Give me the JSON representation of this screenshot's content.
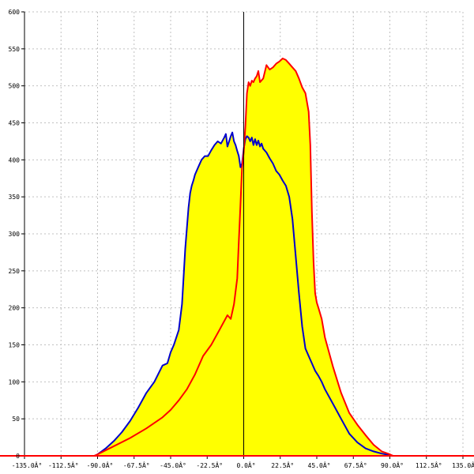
{
  "chart_data": {
    "type": "area",
    "title": "",
    "xlabel": "",
    "ylabel": "",
    "xlim": [
      -135,
      135
    ],
    "ylim": [
      0,
      600
    ],
    "grid": true,
    "x_ticks": [
      -135,
      -112.5,
      -90,
      -67.5,
      -45,
      -22.5,
      0,
      22.5,
      45,
      67.5,
      90,
      112.5,
      135
    ],
    "x_tick_labels": [
      "-135.0Â°",
      "-112.5Â°",
      "-90.0Â°",
      "-67.5Â°",
      "-45.0Â°",
      "-22.5Â°",
      "0.0Â°",
      "22.5Â°",
      "45.0Â°",
      "67.5Â°",
      "90.0Â°",
      "112.5Â°",
      "135.0Â°"
    ],
    "y_ticks": [
      0,
      50,
      100,
      150,
      200,
      250,
      300,
      350,
      400,
      450,
      500,
      550,
      600
    ],
    "y_tick_labels": [
      "0",
      "50",
      "100",
      "150",
      "200",
      "250",
      "300",
      "350",
      "400",
      "450",
      "500",
      "550",
      "600"
    ],
    "colors": {
      "fill": "#ffff00",
      "series_blue": "#0000cc",
      "series_red": "#ff0000",
      "grid": "#c0c0c0",
      "axis": "#000000"
    },
    "series": [
      {
        "color": "blue",
        "x": [
          -140,
          -92,
          -90,
          -85,
          -80,
          -75,
          -70,
          -65,
          -60,
          -55,
          -50,
          -47,
          -45,
          -43,
          -40,
          -38,
          -36,
          -34,
          -33,
          -32,
          -31,
          -30,
          -28,
          -26,
          -24,
          -22,
          -20,
          -18,
          -16,
          -14,
          -12,
          -11,
          -10,
          -9,
          -8,
          -7,
          -6,
          -5,
          -4,
          -3,
          -2,
          -1,
          0,
          1,
          2,
          3,
          4,
          5,
          6,
          7,
          8,
          9,
          10,
          11,
          12,
          14,
          16,
          18,
          20,
          22,
          24,
          26,
          28,
          30,
          32,
          34,
          36,
          38,
          40,
          42,
          44,
          46,
          48,
          50,
          55,
          60,
          65,
          70,
          75,
          80,
          85,
          90,
          92,
          140
        ],
        "y": [
          0,
          0,
          2,
          10,
          20,
          32,
          47,
          65,
          85,
          100,
          122,
          125,
          140,
          150,
          170,
          205,
          280,
          335,
          355,
          365,
          372,
          380,
          390,
          400,
          405,
          405,
          413,
          420,
          425,
          422,
          430,
          435,
          418,
          425,
          432,
          437,
          425,
          420,
          412,
          405,
          390,
          395,
          415,
          428,
          432,
          430,
          425,
          430,
          420,
          428,
          420,
          426,
          418,
          422,
          415,
          410,
          402,
          395,
          385,
          380,
          372,
          365,
          350,
          320,
          270,
          220,
          175,
          145,
          135,
          125,
          115,
          108,
          100,
          90,
          70,
          50,
          30,
          18,
          10,
          6,
          3,
          1,
          0,
          0
        ]
      },
      {
        "color": "red",
        "x": [
          -140,
          -92,
          -90,
          -80,
          -70,
          -60,
          -50,
          -45,
          -40,
          -35,
          -30,
          -25,
          -20,
          -15,
          -10,
          -8,
          -6,
          -4,
          -3,
          -2,
          -1,
          0,
          1,
          2,
          3,
          4,
          5,
          6,
          7,
          8,
          9,
          10,
          12,
          14,
          16,
          18,
          20,
          22,
          24,
          26,
          28,
          30,
          32,
          34,
          36,
          38,
          40,
          41,
          42,
          43,
          44,
          45,
          46,
          48,
          50,
          55,
          60,
          65,
          70,
          75,
          80,
          85,
          90,
          92,
          140
        ],
        "y": [
          0,
          0,
          2,
          13,
          24,
          37,
          52,
          62,
          75,
          90,
          110,
          135,
          150,
          170,
          190,
          185,
          205,
          240,
          290,
          340,
          390,
          410,
          445,
          490,
          505,
          500,
          507,
          505,
          510,
          513,
          520,
          505,
          510,
          528,
          522,
          525,
          530,
          533,
          537,
          535,
          530,
          525,
          520,
          510,
          498,
          490,
          465,
          420,
          330,
          262,
          220,
          207,
          200,
          185,
          160,
          120,
          85,
          58,
          42,
          28,
          15,
          6,
          2,
          0,
          0
        ]
      }
    ]
  }
}
